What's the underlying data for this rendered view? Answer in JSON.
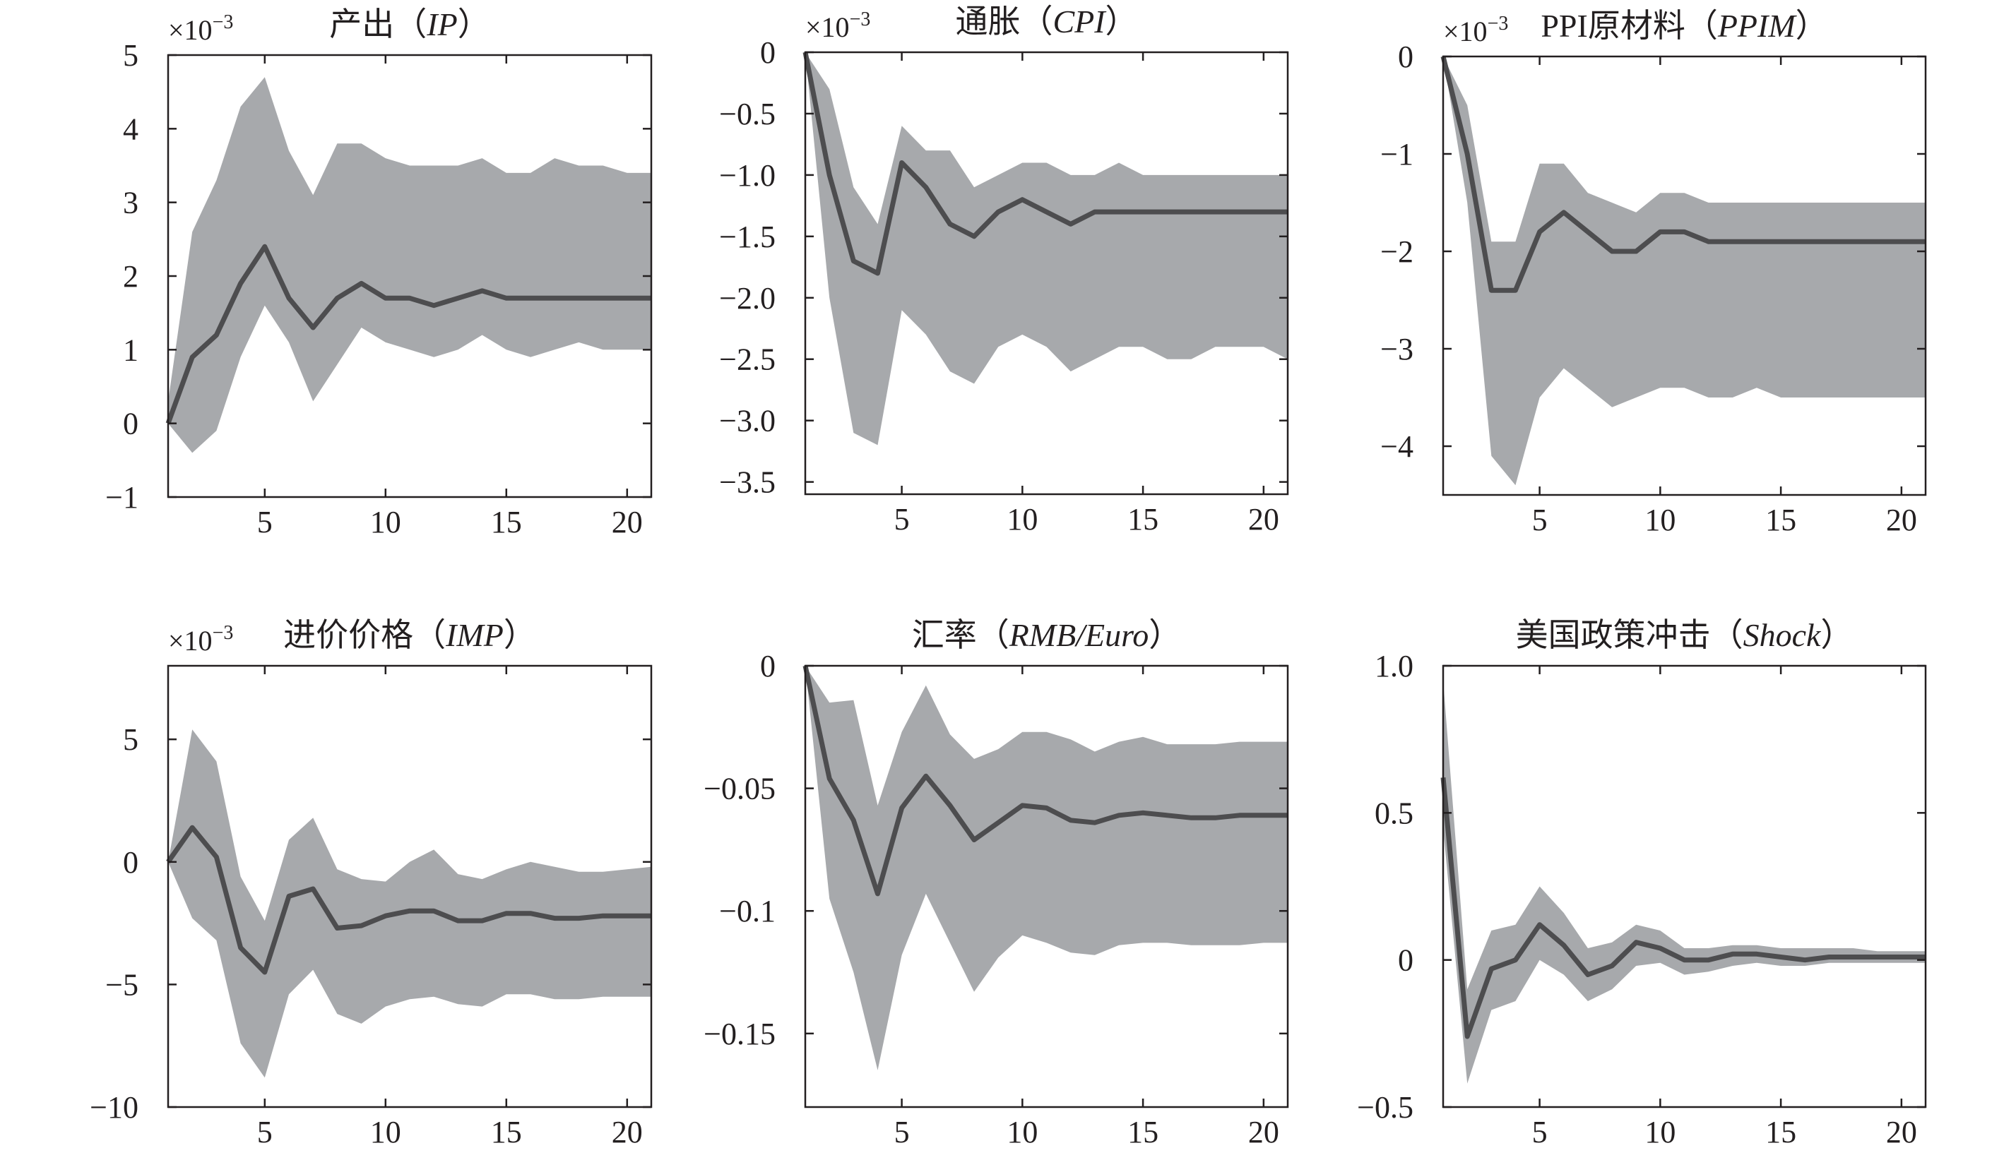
{
  "chart_data": [
    {
      "type": "line",
      "title": "产出",
      "title_var": "IP",
      "multiplier": "×10",
      "multiplier_exp": "−3",
      "xlim": [
        1,
        21
      ],
      "ylim": [
        -1,
        5
      ],
      "xticks": [
        5,
        10,
        15,
        20
      ],
      "xtick_labels": [
        "5",
        "10",
        "15",
        "20"
      ],
      "yticks": [
        -1,
        0,
        1,
        2,
        3,
        4,
        5
      ],
      "ytick_labels": [
        "−1",
        "0",
        "1",
        "2",
        "3",
        "4",
        "5"
      ],
      "x": [
        1,
        2,
        3,
        4,
        5,
        6,
        7,
        8,
        9,
        10,
        11,
        12,
        13,
        14,
        15,
        16,
        17,
        18,
        19,
        20,
        21
      ],
      "series": [
        {
          "name": "median",
          "values": [
            0.0,
            0.9,
            1.2,
            1.9,
            2.4,
            1.7,
            1.3,
            1.7,
            1.9,
            1.7,
            1.7,
            1.6,
            1.7,
            1.8,
            1.7,
            1.7,
            1.7,
            1.7,
            1.7,
            1.7,
            1.7
          ]
        },
        {
          "name": "upper",
          "values": [
            0.3,
            2.6,
            3.3,
            4.3,
            4.7,
            3.7,
            3.1,
            3.8,
            3.8,
            3.6,
            3.5,
            3.5,
            3.5,
            3.6,
            3.4,
            3.4,
            3.6,
            3.5,
            3.5,
            3.4,
            3.4
          ]
        },
        {
          "name": "lower",
          "values": [
            0.0,
            -0.4,
            -0.1,
            0.9,
            1.6,
            1.1,
            0.3,
            0.8,
            1.3,
            1.1,
            1.0,
            0.9,
            1.0,
            1.2,
            1.0,
            0.9,
            1.0,
            1.1,
            1.0,
            1.0,
            1.0
          ]
        }
      ]
    },
    {
      "type": "line",
      "title": "通胀",
      "title_var": "CPI",
      "multiplier": "×10",
      "multiplier_exp": "−3",
      "xlim": [
        1,
        21
      ],
      "ylim": [
        -3.6,
        0
      ],
      "xticks": [
        5,
        10,
        15,
        20
      ],
      "xtick_labels": [
        "5",
        "10",
        "15",
        "20"
      ],
      "yticks": [
        -3.5,
        -3.0,
        -2.5,
        -2.0,
        -1.5,
        -1.0,
        -0.5,
        0
      ],
      "ytick_labels": [
        "−3.5",
        "−3.0",
        "−2.5",
        "−2.0",
        "−1.5",
        "−1.0",
        "−0.5",
        "0"
      ],
      "x": [
        1,
        2,
        3,
        4,
        5,
        6,
        7,
        8,
        9,
        10,
        11,
        12,
        13,
        14,
        15,
        16,
        17,
        18,
        19,
        20,
        21
      ],
      "series": [
        {
          "name": "median",
          "values": [
            0.0,
            -1.0,
            -1.7,
            -1.8,
            -0.9,
            -1.1,
            -1.4,
            -1.5,
            -1.3,
            -1.2,
            -1.3,
            -1.4,
            -1.3,
            -1.3,
            -1.3,
            -1.3,
            -1.3,
            -1.3,
            -1.3,
            -1.3,
            -1.3
          ]
        },
        {
          "name": "upper",
          "values": [
            0.0,
            -0.3,
            -1.1,
            -1.4,
            -0.6,
            -0.8,
            -0.8,
            -1.1,
            -1.0,
            -0.9,
            -0.9,
            -1.0,
            -1.0,
            -0.9,
            -1.0,
            -1.0,
            -1.0,
            -1.0,
            -1.0,
            -1.0,
            -1.0
          ]
        },
        {
          "name": "lower",
          "values": [
            0.0,
            -2.0,
            -3.1,
            -3.2,
            -2.1,
            -2.3,
            -2.6,
            -2.7,
            -2.4,
            -2.3,
            -2.4,
            -2.6,
            -2.5,
            -2.4,
            -2.4,
            -2.5,
            -2.5,
            -2.4,
            -2.4,
            -2.4,
            -2.5
          ]
        }
      ]
    },
    {
      "type": "line",
      "title": "PPI原材料",
      "title_var": "PPIM",
      "multiplier": "×10",
      "multiplier_exp": "−3",
      "xlim": [
        1,
        21
      ],
      "ylim": [
        -4.5,
        0
      ],
      "xticks": [
        5,
        10,
        15,
        20
      ],
      "xtick_labels": [
        "5",
        "10",
        "15",
        "20"
      ],
      "yticks": [
        -4,
        -3,
        -2,
        -1,
        0
      ],
      "ytick_labels": [
        "−4",
        "−3",
        "−2",
        "−1",
        "0"
      ],
      "x": [
        1,
        2,
        3,
        4,
        5,
        6,
        7,
        8,
        9,
        10,
        11,
        12,
        13,
        14,
        15,
        16,
        17,
        18,
        19,
        20,
        21
      ],
      "series": [
        {
          "name": "median",
          "values": [
            0.0,
            -1.0,
            -2.4,
            -2.4,
            -1.8,
            -1.6,
            -1.8,
            -2.0,
            -2.0,
            -1.8,
            -1.8,
            -1.9,
            -1.9,
            -1.9,
            -1.9,
            -1.9,
            -1.9,
            -1.9,
            -1.9,
            -1.9,
            -1.9
          ]
        },
        {
          "name": "upper",
          "values": [
            0.0,
            -0.5,
            -1.9,
            -1.9,
            -1.1,
            -1.1,
            -1.4,
            -1.5,
            -1.6,
            -1.4,
            -1.4,
            -1.5,
            -1.5,
            -1.5,
            -1.5,
            -1.5,
            -1.5,
            -1.5,
            -1.5,
            -1.5,
            -1.5
          ]
        },
        {
          "name": "lower",
          "values": [
            0.0,
            -1.5,
            -4.1,
            -4.4,
            -3.5,
            -3.2,
            -3.4,
            -3.6,
            -3.5,
            -3.4,
            -3.4,
            -3.5,
            -3.5,
            -3.4,
            -3.5,
            -3.5,
            -3.5,
            -3.5,
            -3.5,
            -3.5,
            -3.5
          ]
        }
      ]
    },
    {
      "type": "line",
      "title": "进价价格",
      "title_var": "IMP",
      "multiplier": "×10",
      "multiplier_exp": "−3",
      "xlim": [
        1,
        21
      ],
      "ylim": [
        -10,
        8
      ],
      "xticks": [
        5,
        10,
        15,
        20
      ],
      "xtick_labels": [
        "5",
        "10",
        "15",
        "20"
      ],
      "yticks": [
        -10,
        -5,
        0,
        5
      ],
      "ytick_labels": [
        "−10",
        "−5",
        "0",
        "5"
      ],
      "x": [
        1,
        2,
        3,
        4,
        5,
        6,
        7,
        8,
        9,
        10,
        11,
        12,
        13,
        14,
        15,
        16,
        17,
        18,
        19,
        20,
        21
      ],
      "series": [
        {
          "name": "median",
          "values": [
            0.0,
            1.4,
            0.2,
            -3.5,
            -4.5,
            -1.4,
            -1.1,
            -2.7,
            -2.6,
            -2.2,
            -2.0,
            -2.0,
            -2.4,
            -2.4,
            -2.1,
            -2.1,
            -2.3,
            -2.3,
            -2.2,
            -2.2,
            -2.2
          ]
        },
        {
          "name": "upper",
          "values": [
            0.0,
            5.4,
            4.1,
            -0.6,
            -2.4,
            0.9,
            1.8,
            -0.3,
            -0.7,
            -0.8,
            0.0,
            0.5,
            -0.5,
            -0.7,
            -0.3,
            0.0,
            -0.2,
            -0.4,
            -0.4,
            -0.3,
            -0.2
          ]
        },
        {
          "name": "lower",
          "values": [
            0.0,
            -2.3,
            -3.2,
            -7.4,
            -8.8,
            -5.4,
            -4.4,
            -6.2,
            -6.6,
            -5.9,
            -5.6,
            -5.5,
            -5.8,
            -5.9,
            -5.4,
            -5.4,
            -5.6,
            -5.6,
            -5.5,
            -5.5,
            -5.5
          ]
        }
      ]
    },
    {
      "type": "line",
      "title": "汇率",
      "title_var": "RMB/Euro",
      "multiplier": "",
      "multiplier_exp": "",
      "xlim": [
        1,
        21
      ],
      "ylim": [
        -0.18,
        0
      ],
      "xticks": [
        5,
        10,
        15,
        20
      ],
      "xtick_labels": [
        "5",
        "10",
        "15",
        "20"
      ],
      "yticks": [
        -0.15,
        -0.1,
        -0.05,
        0
      ],
      "ytick_labels": [
        "−0.15",
        "−0.1",
        "−0.05",
        "0"
      ],
      "x": [
        1,
        2,
        3,
        4,
        5,
        6,
        7,
        8,
        9,
        10,
        11,
        12,
        13,
        14,
        15,
        16,
        17,
        18,
        19,
        20,
        21
      ],
      "series": [
        {
          "name": "median",
          "values": [
            0.0,
            -0.046,
            -0.063,
            -0.093,
            -0.058,
            -0.045,
            -0.057,
            -0.071,
            -0.064,
            -0.057,
            -0.058,
            -0.063,
            -0.064,
            -0.061,
            -0.06,
            -0.061,
            -0.062,
            -0.062,
            -0.061,
            -0.061,
            -0.061
          ]
        },
        {
          "name": "upper",
          "values": [
            0.0,
            -0.015,
            -0.014,
            -0.057,
            -0.027,
            -0.008,
            -0.028,
            -0.038,
            -0.034,
            -0.027,
            -0.027,
            -0.03,
            -0.035,
            -0.031,
            -0.029,
            -0.032,
            -0.032,
            -0.032,
            -0.031,
            -0.031,
            -0.031
          ]
        },
        {
          "name": "lower",
          "values": [
            0.0,
            -0.095,
            -0.125,
            -0.165,
            -0.118,
            -0.093,
            -0.113,
            -0.133,
            -0.119,
            -0.11,
            -0.113,
            -0.117,
            -0.118,
            -0.114,
            -0.113,
            -0.113,
            -0.114,
            -0.114,
            -0.114,
            -0.113,
            -0.113
          ]
        }
      ]
    },
    {
      "type": "line",
      "title": "美国政策冲击",
      "title_var": "Shock",
      "multiplier": "",
      "multiplier_exp": "",
      "xlim": [
        1,
        21
      ],
      "ylim": [
        -0.5,
        1.0
      ],
      "xticks": [
        5,
        10,
        15,
        20
      ],
      "xtick_labels": [
        "5",
        "10",
        "15",
        "20"
      ],
      "yticks": [
        -0.5,
        0,
        0.5,
        1.0
      ],
      "ytick_labels": [
        "−0.5",
        "0",
        "0.5",
        "1.0"
      ],
      "x": [
        1,
        2,
        3,
        4,
        5,
        6,
        7,
        8,
        9,
        10,
        11,
        12,
        13,
        14,
        15,
        16,
        17,
        18,
        19,
        20,
        21
      ],
      "series": [
        {
          "name": "median",
          "values": [
            0.62,
            -0.26,
            -0.03,
            0.0,
            0.12,
            0.05,
            -0.05,
            -0.02,
            0.06,
            0.04,
            0.0,
            0.0,
            0.02,
            0.02,
            0.01,
            0.0,
            0.01,
            0.01,
            0.01,
            0.01,
            0.01
          ]
        },
        {
          "name": "upper",
          "values": [
            0.95,
            -0.1,
            0.1,
            0.12,
            0.25,
            0.16,
            0.04,
            0.06,
            0.12,
            0.1,
            0.04,
            0.04,
            0.05,
            0.05,
            0.04,
            0.04,
            0.04,
            0.04,
            0.03,
            0.03,
            0.03
          ]
        },
        {
          "name": "lower",
          "values": [
            0.45,
            -0.42,
            -0.17,
            -0.14,
            0.0,
            -0.05,
            -0.14,
            -0.1,
            -0.02,
            -0.01,
            -0.05,
            -0.04,
            -0.02,
            -0.01,
            -0.02,
            -0.02,
            -0.01,
            -0.01,
            -0.01,
            -0.01,
            -0.01
          ]
        }
      ]
    }
  ]
}
